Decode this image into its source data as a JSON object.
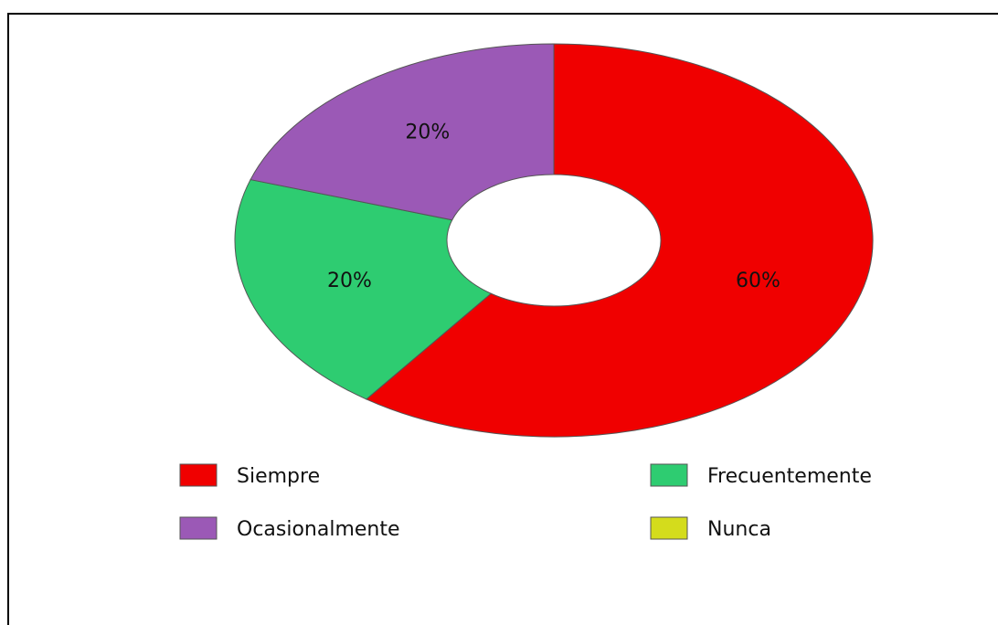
{
  "chart_data": {
    "type": "donut",
    "categories": [
      "Siempre",
      "Frecuentemente",
      "Ocasionalmente",
      "Nunca"
    ],
    "values": [
      60,
      20,
      20,
      0
    ],
    "value_labels": [
      "60%",
      "20%",
      "20%",
      null
    ],
    "colors": [
      "#f00000",
      "#2ecc71",
      "#9b59b6",
      "#d4dc1c"
    ],
    "legend": "bottom"
  }
}
